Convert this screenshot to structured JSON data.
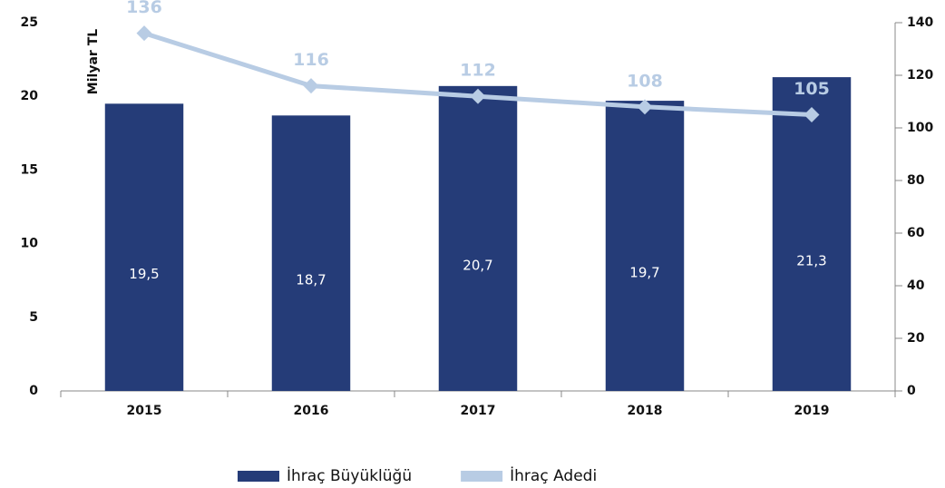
{
  "chart_data": {
    "type": "bar",
    "ylabel": "Milyar TL",
    "categories": [
      "2015",
      "2016",
      "2017",
      "2018",
      "2019"
    ],
    "series": [
      {
        "name": "İhraç Büyüklüğü",
        "type": "bar",
        "color": "#253c78",
        "values": [
          19.5,
          18.7,
          20.7,
          19.7,
          21.3
        ],
        "value_labels": [
          "19,5",
          "18,7",
          "20,7",
          "19,7",
          "21,3"
        ]
      },
      {
        "name": "İhraç Adedi",
        "type": "line",
        "axis": "y2",
        "color": "#b8cce4",
        "values": [
          136,
          116,
          112,
          108,
          105
        ]
      }
    ],
    "ylim": [
      0,
      25
    ],
    "yticks": [
      0,
      5,
      10,
      15,
      20,
      25
    ],
    "y2lim": [
      0,
      140
    ],
    "y2ticks": [
      0,
      20,
      40,
      60,
      80,
      100,
      120,
      140
    ],
    "legend": "bottom"
  }
}
